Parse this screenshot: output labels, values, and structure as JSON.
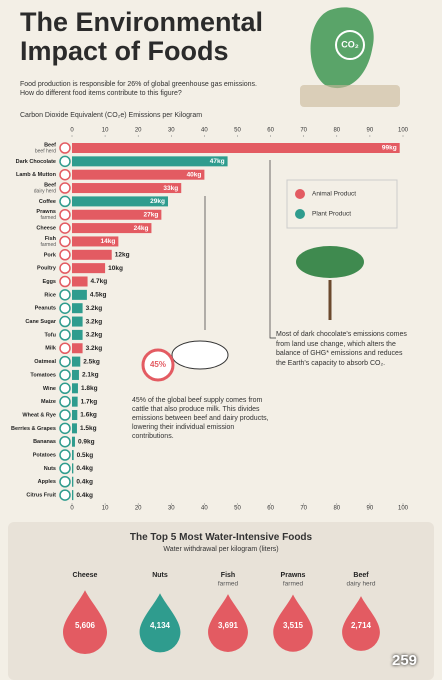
{
  "header": {
    "title": "The Environmental Impact of Foods",
    "subtitle": "Food production is responsible for 26% of global greenhouse gas emissions. How do different food items contribute to this figure?",
    "icon_text": "CO₂"
  },
  "likes": 259,
  "chart_data": [
    {
      "type": "bar",
      "orientation": "horizontal",
      "xlabel": "Carbon Dioxide Equivalent (CO₂e) Emissions per Kilogram",
      "categories": [
        "Beef",
        "Dark Chocolate",
        "Lamb & Mutton",
        "Beef",
        "Coffee",
        "Prawns",
        "Cheese",
        "Fish",
        "Pork",
        "Poultry",
        "Eggs",
        "Rice",
        "Peanuts",
        "Cane Sugar",
        "Tofu",
        "Milk",
        "Oatmeal",
        "Tomatoes",
        "Wine",
        "Maize",
        "Wheat & Rye",
        "Berries & Grapes",
        "Bananas",
        "Potatoes",
        "Nuts",
        "Apples",
        "Citrus Fruit"
      ],
      "sublabels": [
        "beef herd",
        null,
        null,
        "dairy herd",
        null,
        "farmed",
        null,
        "farmed",
        null,
        null,
        null,
        null,
        null,
        null,
        null,
        null,
        null,
        null,
        null,
        null,
        null,
        null,
        null,
        null,
        null,
        null,
        null
      ],
      "series": [
        {
          "name": "Animal Product",
          "color": "#e35b62",
          "values": [
            99,
            null,
            40,
            33,
            null,
            27,
            24,
            14,
            12,
            10,
            4.7,
            null,
            null,
            null,
            null,
            3.2,
            null,
            null,
            null,
            null,
            null,
            null,
            null,
            null,
            null,
            null,
            null
          ],
          "value_labels": [
            "99kg",
            null,
            "40kg",
            "33kg",
            null,
            "27kg",
            "24kg",
            "14kg",
            "12kg",
            "10kg",
            "4.7kg",
            null,
            null,
            null,
            null,
            "3.2kg",
            null,
            null,
            null,
            null,
            null,
            null,
            null,
            null,
            null,
            null,
            null
          ]
        },
        {
          "name": "Plant Product",
          "color": "#2f9c8e",
          "values": [
            null,
            47,
            null,
            null,
            29,
            null,
            null,
            null,
            null,
            null,
            null,
            4.5,
            3.2,
            3.2,
            3.2,
            null,
            2.5,
            2.1,
            1.8,
            1.7,
            1.6,
            1.5,
            0.9,
            0.5,
            0.4,
            0.4,
            0.4
          ],
          "value_labels": [
            null,
            "47kg",
            null,
            null,
            "29kg",
            null,
            null,
            null,
            null,
            null,
            null,
            "4.5kg",
            "3.2kg",
            "3.2kg",
            "3.2kg",
            null,
            "2.5kg",
            "2.1kg",
            "1.8kg",
            "1.7kg",
            "1.6kg",
            "1.5kg",
            "0.9kg",
            "0.5kg",
            "0.4kg",
            "0.4kg",
            "0.4kg"
          ]
        }
      ],
      "xlim": [
        0,
        100
      ],
      "xticks": [
        0,
        10,
        20,
        30,
        40,
        50,
        60,
        70,
        80,
        90,
        100
      ],
      "grid": false,
      "legend": "right",
      "annotations": [
        {
          "percent": "45%",
          "text": "45% of the global beef supply comes from cattle that also produce milk. This divides emissions between beef and dairy products, lowering their individual emission contributions."
        },
        {
          "text": "Most of dark chocolate's emissions comes from land use change, which alters the balance of GHG* emissions and reduces the Earth's capacity to absorb CO₂."
        }
      ]
    },
    {
      "type": "drop",
      "title": "The Top 5 Most Water-Intensive Foods",
      "subtitle": "Water withdrawal per kilogram (liters)",
      "categories": [
        "Cheese",
        "Nuts",
        "Fish",
        "Prawns",
        "Beef"
      ],
      "sublabels": [
        null,
        null,
        "farmed",
        "farmed",
        "dairy herd"
      ],
      "values": [
        5606,
        4134,
        3691,
        3515,
        2714
      ],
      "value_labels": [
        "5,606",
        "4,134",
        "3,691",
        "3,515",
        "2,714"
      ],
      "colors": [
        "#e35b62",
        "#2f9c8e",
        "#e35b62",
        "#e35b62",
        "#e35b62"
      ]
    }
  ]
}
